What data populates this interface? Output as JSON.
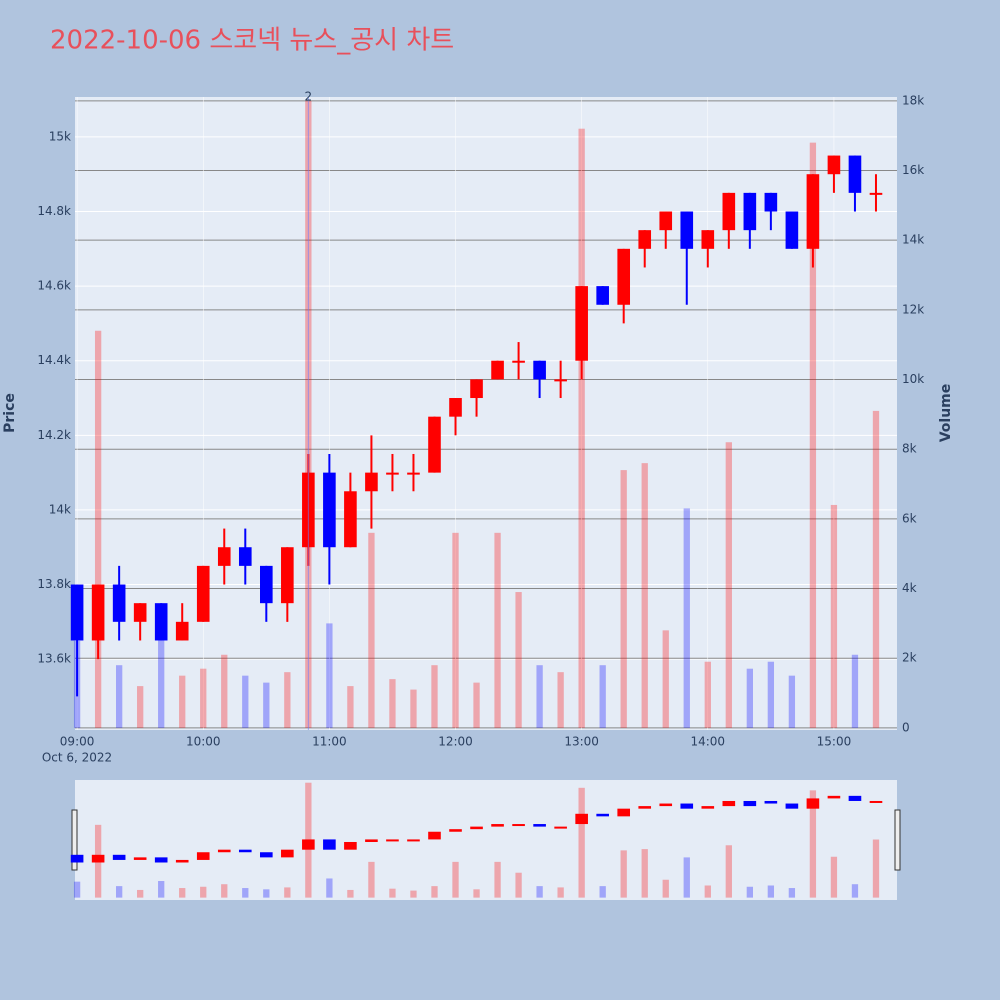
{
  "chart_data": {
    "type": "candlestick",
    "title": "2022-10-06 스코넥 뉴스_공시 차트",
    "y_label": "Price",
    "y2_label": "Volume",
    "x_date": "Oct 6, 2022",
    "annotation": {
      "x": "10:50",
      "text": "2"
    },
    "x": [
      "09:00",
      "09:10",
      "09:20",
      "09:30",
      "09:40",
      "09:50",
      "10:00",
      "10:10",
      "10:20",
      "10:30",
      "10:40",
      "10:50",
      "11:00",
      "11:10",
      "11:20",
      "11:30",
      "11:40",
      "11:50",
      "12:00",
      "12:10",
      "12:20",
      "12:30",
      "12:40",
      "12:50",
      "13:00",
      "13:10",
      "13:20",
      "13:30",
      "13:40",
      "13:50",
      "14:00",
      "14:10",
      "14:20",
      "14:30",
      "14:40",
      "14:50",
      "15:00",
      "15:10",
      "15:20"
    ],
    "open": [
      13800,
      13650,
      13800,
      13700,
      13750,
      13650,
      13700,
      13850,
      13900,
      13850,
      13750,
      13900,
      14100,
      13900,
      14050,
      14100,
      14100,
      14100,
      14250,
      14300,
      14350,
      14400,
      14400,
      14350,
      14400,
      14600,
      14550,
      14700,
      14750,
      14800,
      14700,
      14750,
      14850,
      14850,
      14800,
      14700,
      14900,
      14950,
      14850
    ],
    "high": [
      13800,
      13800,
      13850,
      13750,
      13750,
      13750,
      13850,
      13950,
      13950,
      13850,
      13900,
      14150,
      14150,
      14100,
      14200,
      14150,
      14150,
      14250,
      14300,
      14350,
      14400,
      14450,
      14400,
      14400,
      14600,
      14600,
      14700,
      14750,
      14800,
      14800,
      14750,
      14850,
      14850,
      14850,
      14800,
      14900,
      14950,
      14950,
      14900
    ],
    "low": [
      13500,
      13600,
      13650,
      13650,
      13650,
      13650,
      13700,
      13800,
      13800,
      13700,
      13700,
      13850,
      13800,
      13900,
      13950,
      14050,
      14050,
      14100,
      14200,
      14250,
      14350,
      14350,
      14300,
      14300,
      14350,
      14550,
      14500,
      14650,
      14700,
      14550,
      14650,
      14700,
      14700,
      14750,
      14700,
      14650,
      14850,
      14800,
      14800
    ],
    "close": [
      13650,
      13800,
      13700,
      13750,
      13650,
      13700,
      13850,
      13900,
      13850,
      13750,
      13900,
      14100,
      13900,
      14050,
      14100,
      14100,
      14100,
      14250,
      14300,
      14350,
      14400,
      14400,
      14350,
      14350,
      14600,
      14550,
      14700,
      14750,
      14800,
      14700,
      14750,
      14850,
      14750,
      14800,
      14700,
      14900,
      14950,
      14850,
      14850
    ],
    "volume": [
      2500,
      11400,
      1800,
      1200,
      2600,
      1500,
      1700,
      2100,
      1500,
      1300,
      1600,
      18000,
      3000,
      1200,
      5600,
      1400,
      1100,
      1800,
      5600,
      1300,
      5600,
      3900,
      1800,
      1600,
      17200,
      1800,
      7400,
      7600,
      2800,
      6300,
      1900,
      8200,
      1700,
      1900,
      1500,
      16800,
      6400,
      2100,
      9100
    ],
    "increasing_color": "#ff0000",
    "decreasing_color": "#0000ff",
    "xlim": [
      "08:59",
      "15:30"
    ],
    "xticks": [
      "09:00",
      "10:00",
      "11:00",
      "12:00",
      "13:00",
      "14:00",
      "15:00"
    ],
    "ylim": [
      13410,
      15107
    ],
    "yticks": [
      {
        "value": 13600,
        "label": "13.6k"
      },
      {
        "value": 13800,
        "label": "13.8k"
      },
      {
        "value": 14000,
        "label": "14k"
      },
      {
        "value": 14200,
        "label": "14.2k"
      },
      {
        "value": 14400,
        "label": "14.4k"
      },
      {
        "value": 14600,
        "label": "14.6k"
      },
      {
        "value": 14800,
        "label": "14.8k"
      },
      {
        "value": 15000,
        "label": "15k"
      }
    ],
    "y2lim": [
      -60,
      18110
    ],
    "y2ticks": [
      0,
      {
        "value": 2000,
        "label": "2k"
      },
      {
        "value": 4000,
        "label": "4k"
      },
      {
        "value": 6000,
        "label": "6k"
      },
      {
        "value": 8000,
        "label": "8k"
      },
      {
        "value": 10000,
        "label": "10k"
      },
      {
        "value": 12000,
        "label": "12k"
      },
      {
        "value": 14000,
        "label": "14k"
      },
      {
        "value": 16000,
        "label": "16k"
      },
      {
        "value": 18000,
        "label": "18k"
      }
    ],
    "grid": true,
    "rangeslider": true
  }
}
